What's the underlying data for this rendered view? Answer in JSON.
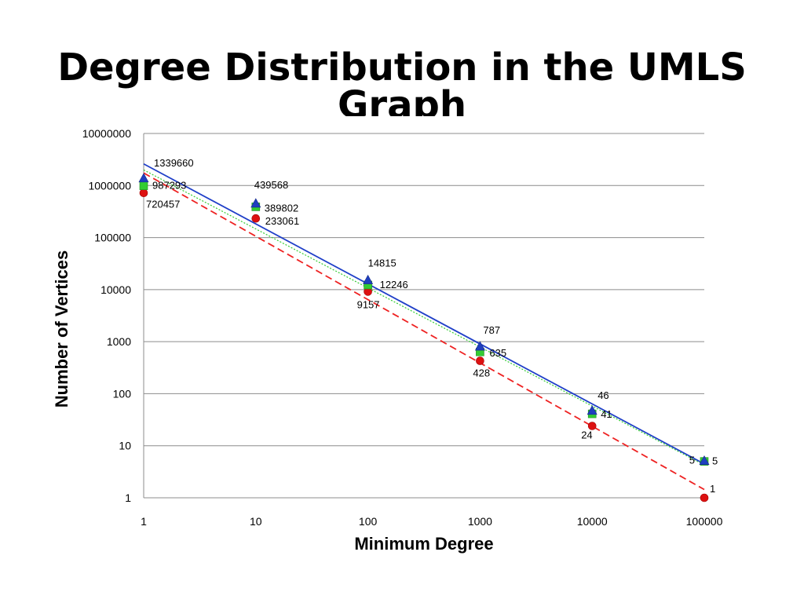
{
  "slide": {
    "title": "Degree Distribution in the UMLS Graph"
  },
  "chart_data": {
    "type": "scatter",
    "title": "",
    "xlabel": "Minimum Degree",
    "ylabel": "Number of Vertices",
    "x_scale": "log",
    "y_scale": "log",
    "xlim": [
      1,
      100000
    ],
    "ylim": [
      1,
      10000000
    ],
    "x_ticks": [
      "1",
      "10",
      "100",
      "1000",
      "10000",
      "100000"
    ],
    "y_ticks": [
      "1",
      "10",
      "100",
      "1000",
      "10000",
      "100000",
      "1000000",
      "10000000"
    ],
    "grid": "horizontal",
    "legend": "none",
    "series": [
      {
        "marker": "triangle",
        "color": "#1f3fbf",
        "trendline": "solid",
        "trend_color": "#1f3fc8",
        "x": [
          1,
          10,
          100,
          1000,
          10000,
          100000
        ],
        "y": [
          1339660,
          439568,
          14815,
          787,
          46,
          5
        ],
        "labels": [
          "1339660",
          "439568",
          "14815",
          "787",
          "46",
          "5"
        ]
      },
      {
        "marker": "square",
        "color": "#33cc33",
        "trendline": "dotted",
        "trend_color": "#33cc33",
        "x": [
          1,
          10,
          100,
          1000,
          10000,
          100000
        ],
        "y": [
          987293,
          389802,
          12246,
          635,
          41,
          5
        ],
        "labels": [
          "987293",
          "389802",
          "12246",
          "635",
          "41",
          "5"
        ]
      },
      {
        "marker": "circle",
        "color": "#dd1111",
        "trendline": "dashed",
        "trend_color": "#ee2222",
        "x": [
          1,
          10,
          100,
          1000,
          10000,
          100000
        ],
        "y": [
          720457,
          233061,
          9157,
          428,
          24,
          1
        ],
        "labels": [
          "720457",
          "233061",
          "9157",
          "428",
          "24",
          "1"
        ]
      }
    ]
  }
}
